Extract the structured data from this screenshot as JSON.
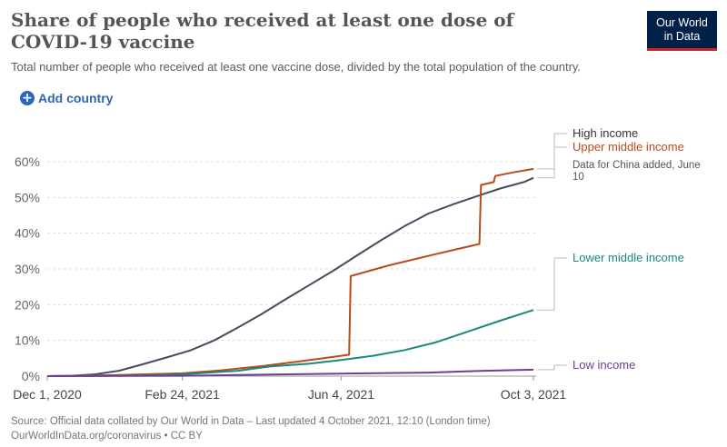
{
  "header": {
    "title": "Share of people who received at least one dose of COVID-19 vaccine",
    "subtitle": "Total number of people who received at least one vaccine dose, divided by the total population of the country.",
    "logo_line1": "Our World",
    "logo_line2": "in Data"
  },
  "controls": {
    "add_country_label": "Add country"
  },
  "footer": {
    "source": "Source: Official data collated by Our World in Data – Last updated 4 October 2021, 12:10 (London time)",
    "link": "OurWorldInData.org/coronavirus • CC BY"
  },
  "chart_data": {
    "type": "line",
    "x_range": [
      "2020-12-01",
      "2021-10-03"
    ],
    "x_ticks": [
      "Dec 1, 2020",
      "Feb 24, 2021",
      "Jun 4, 2021",
      "Oct 3, 2021"
    ],
    "x_tick_dates": [
      "2020-12-01",
      "2021-02-24",
      "2021-06-04",
      "2021-10-03"
    ],
    "ylim": [
      0,
      60
    ],
    "y_ticks": [
      "0%",
      "10%",
      "20%",
      "30%",
      "40%",
      "50%",
      "60%"
    ],
    "y_tick_values": [
      0,
      10,
      20,
      30,
      40,
      50,
      60
    ],
    "grid": true,
    "series": [
      {
        "name": "High income",
        "color": "#444c60",
        "points": [
          [
            "2020-12-01",
            0
          ],
          [
            "2020-12-16",
            0.1
          ],
          [
            "2020-12-31",
            0.5
          ],
          [
            "2021-01-15",
            1.5
          ],
          [
            "2021-01-30",
            3.3
          ],
          [
            "2021-02-14",
            5.2
          ],
          [
            "2021-03-01",
            7.2
          ],
          [
            "2021-03-16",
            10.0
          ],
          [
            "2021-03-31",
            13.6
          ],
          [
            "2021-04-15",
            17.4
          ],
          [
            "2021-04-30",
            21.5
          ],
          [
            "2021-05-15",
            25.5
          ],
          [
            "2021-05-30",
            29.5
          ],
          [
            "2021-06-14",
            33.8
          ],
          [
            "2021-06-29",
            38.0
          ],
          [
            "2021-07-14",
            42.0
          ],
          [
            "2021-07-29",
            45.5
          ],
          [
            "2021-08-13",
            48.0
          ],
          [
            "2021-08-28",
            50.3
          ],
          [
            "2021-09-12",
            52.5
          ],
          [
            "2021-09-27",
            54.3
          ],
          [
            "2021-10-03",
            55.5
          ]
        ]
      },
      {
        "name": "Upper middle income",
        "color": "#b84a1b",
        "points": [
          [
            "2020-12-01",
            0
          ],
          [
            "2021-01-15",
            0.3
          ],
          [
            "2021-02-24",
            0.8
          ],
          [
            "2021-03-20",
            1.6
          ],
          [
            "2021-04-15",
            2.8
          ],
          [
            "2021-05-10",
            4.2
          ],
          [
            "2021-06-09",
            6.0
          ],
          [
            "2021-06-10",
            28.0
          ],
          [
            "2021-07-04",
            31.0
          ],
          [
            "2021-08-01",
            34.0
          ],
          [
            "2021-08-30",
            37.0
          ],
          [
            "2021-08-31",
            53.5
          ],
          [
            "2021-09-08",
            54.3
          ],
          [
            "2021-09-09",
            56.0
          ],
          [
            "2021-09-20",
            57.0
          ],
          [
            "2021-10-03",
            58.0
          ]
        ]
      },
      {
        "name": "Lower middle income",
        "color": "#18897c",
        "points": [
          [
            "2020-12-01",
            0
          ],
          [
            "2021-01-20",
            0.1
          ],
          [
            "2021-02-24",
            0.5
          ],
          [
            "2021-03-31",
            1.5
          ],
          [
            "2021-04-20",
            2.7
          ],
          [
            "2021-05-15",
            3.5
          ],
          [
            "2021-06-04",
            4.5
          ],
          [
            "2021-06-24",
            5.7
          ],
          [
            "2021-07-14",
            7.3
          ],
          [
            "2021-08-03",
            9.5
          ],
          [
            "2021-08-23",
            12.5
          ],
          [
            "2021-09-12",
            15.5
          ],
          [
            "2021-10-03",
            18.5
          ]
        ]
      },
      {
        "name": "Low income",
        "color": "#6d3e91",
        "points": [
          [
            "2020-12-01",
            0
          ],
          [
            "2021-02-24",
            0.1
          ],
          [
            "2021-04-15",
            0.4
          ],
          [
            "2021-06-04",
            0.7
          ],
          [
            "2021-07-29",
            1.0
          ],
          [
            "2021-09-02",
            1.5
          ],
          [
            "2021-10-03",
            1.8
          ]
        ]
      }
    ],
    "annotations": [
      {
        "series": "Upper middle income",
        "text": "Data for China added, June 10"
      }
    ]
  }
}
